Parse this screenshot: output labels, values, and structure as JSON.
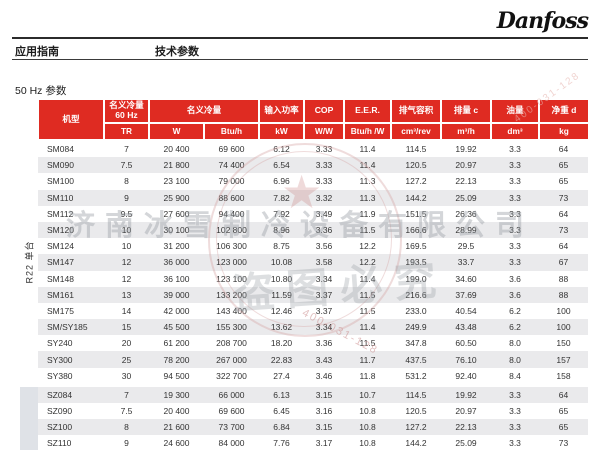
{
  "header": {
    "logo_text": "Danfoss",
    "nav_left": "应用指南",
    "nav_right": "技术参数",
    "section_title": "50 Hz 参数"
  },
  "table": {
    "headers": {
      "model": "机型",
      "cap60": "名义冷量\n60 Hz",
      "cap": "名义冷量",
      "power": "输入功率",
      "cop": "COP",
      "eer": "E.E.R.",
      "swept": "排气容积",
      "disp": "排量 c",
      "oil": "油量",
      "weight": "净重 d"
    },
    "units": {
      "tr": "TR",
      "w": "W",
      "btuh": "Btu/h",
      "kw": "kW",
      "ww": "W/W",
      "btuhw": "Btu/h /W",
      "cm3rev": "cm³/rev",
      "m3h": "m³/h",
      "dm3": "dm³",
      "kg": "kg"
    },
    "groups": [
      {
        "label": "R22 单台",
        "row_count": 15
      },
      {
        "label": "",
        "row_count": 4
      }
    ],
    "rows": [
      [
        "SM084",
        "7",
        "20 400",
        "69 600",
        "6.12",
        "3.33",
        "11.4",
        "114.5",
        "19.92",
        "3.3",
        "64"
      ],
      [
        "SM090",
        "7.5",
        "21 800",
        "74 400",
        "6.54",
        "3.33",
        "11.4",
        "120.5",
        "20.97",
        "3.3",
        "65"
      ],
      [
        "SM100",
        "8",
        "23 100",
        "79 000",
        "6.96",
        "3.33",
        "11.3",
        "127.2",
        "22.13",
        "3.3",
        "65"
      ],
      [
        "SM110",
        "9",
        "25 900",
        "88 600",
        "7.82",
        "3.32",
        "11.3",
        "144.2",
        "25.09",
        "3.3",
        "73"
      ],
      [
        "SM112",
        "9.5",
        "27 600",
        "94 400",
        "7.92",
        "3.49",
        "11.9",
        "151.5",
        "26.36",
        "3.3",
        "64"
      ],
      [
        "SM120",
        "10",
        "30 100",
        "102 800",
        "8.96",
        "3.36",
        "11.5",
        "166.6",
        "28.99",
        "3.3",
        "73"
      ],
      [
        "SM124",
        "10",
        "31 200",
        "106 300",
        "8.75",
        "3.56",
        "12.2",
        "169.5",
        "29.5",
        "3.3",
        "64"
      ],
      [
        "SM147",
        "12",
        "36 000",
        "123 000",
        "10.08",
        "3.58",
        "12.2",
        "193.5",
        "33.7",
        "3.3",
        "67"
      ],
      [
        "SM148",
        "12",
        "36 100",
        "123 100",
        "10.80",
        "3.34",
        "11.4",
        "199.0",
        "34.60",
        "3.6",
        "88"
      ],
      [
        "SM161",
        "13",
        "39 000",
        "133 200",
        "11.59",
        "3.37",
        "11.5",
        "216.6",
        "37.69",
        "3.6",
        "88"
      ],
      [
        "SM175",
        "14",
        "42 000",
        "143 400",
        "12.46",
        "3.37",
        "11.5",
        "233.0",
        "40.54",
        "6.2",
        "100"
      ],
      [
        "SM/SY185",
        "15",
        "45 500",
        "155 300",
        "13.62",
        "3.34",
        "11.4",
        "249.9",
        "43.48",
        "6.2",
        "100"
      ],
      [
        "SY240",
        "20",
        "61 200",
        "208 700",
        "18.20",
        "3.36",
        "11.5",
        "347.8",
        "60.50",
        "8.0",
        "150"
      ],
      [
        "SY300",
        "25",
        "78 200",
        "267 000",
        "22.83",
        "3.43",
        "11.7",
        "437.5",
        "76.10",
        "8.0",
        "157"
      ],
      [
        "SY380",
        "30",
        "94 500",
        "322 700",
        "27.4",
        "3.46",
        "11.8",
        "531.2",
        "92.40",
        "8.4",
        "158"
      ],
      [
        "SZ084",
        "7",
        "19 300",
        "66 000",
        "6.13",
        "3.15",
        "10.7",
        "114.5",
        "19.92",
        "3.3",
        "64"
      ],
      [
        "SZ090",
        "7.5",
        "20 400",
        "69 600",
        "6.45",
        "3.16",
        "10.8",
        "120.5",
        "20.97",
        "3.3",
        "65"
      ],
      [
        "SZ100",
        "8",
        "21 600",
        "73 700",
        "6.84",
        "3.15",
        "10.8",
        "127.2",
        "22.13",
        "3.3",
        "65"
      ],
      [
        "SZ110",
        "9",
        "24 600",
        "84 000",
        "7.76",
        "3.17",
        "10.8",
        "144.2",
        "25.09",
        "3.3",
        "73"
      ]
    ]
  },
  "watermark": {
    "company": "济南冰雪制冷设备有限公司",
    "notice": "盗图必究",
    "phone": "400-031-128",
    "star": "★"
  },
  "colors": {
    "header_red": "#df2b22",
    "stripe_gray": "#eaeaec",
    "group2_bg": "#dfe2e7"
  }
}
